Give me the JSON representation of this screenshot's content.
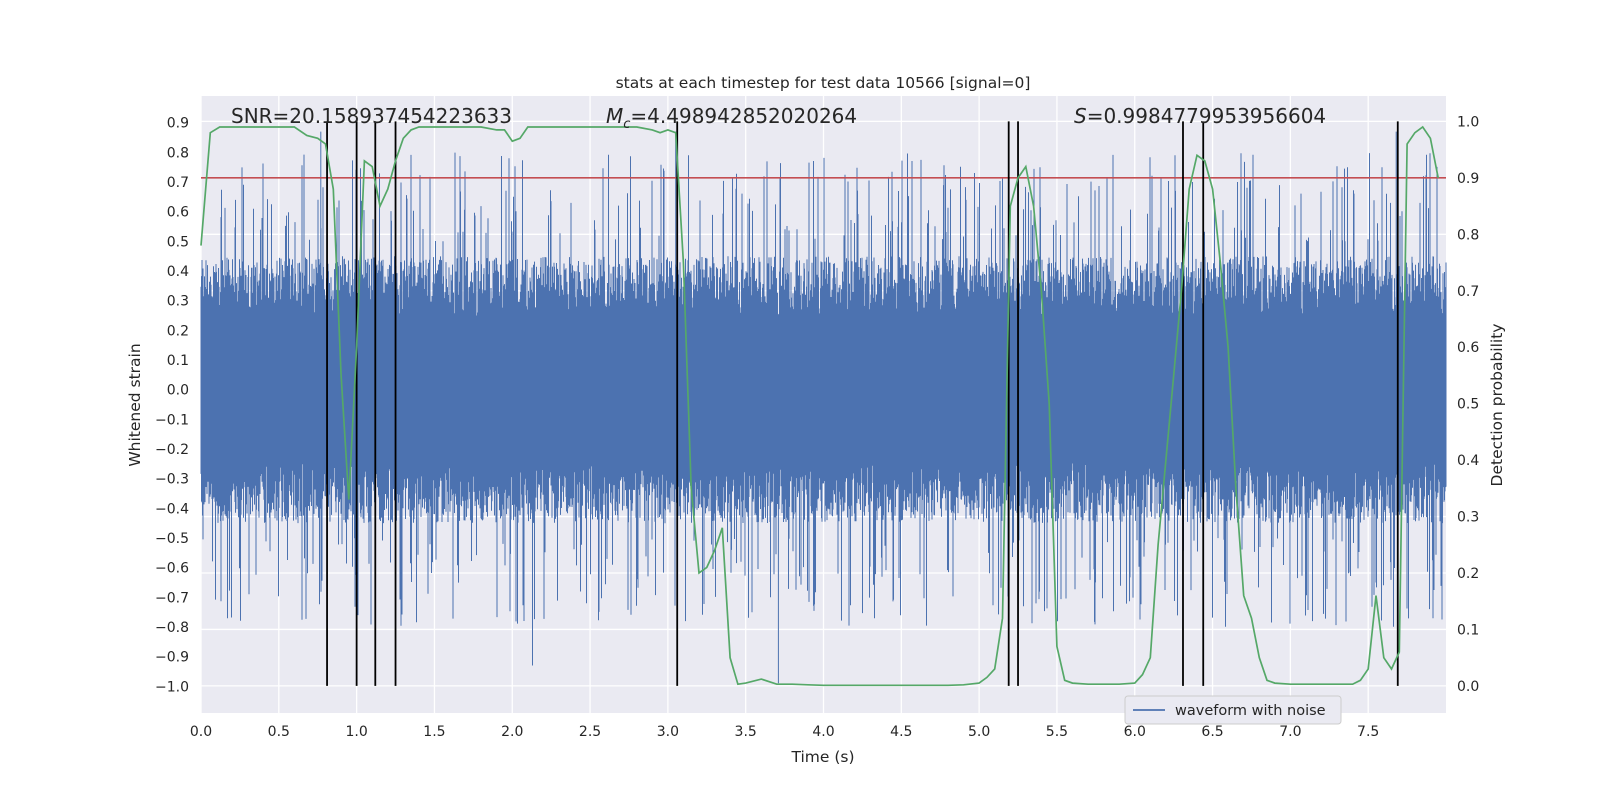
{
  "chart_data": {
    "type": "line",
    "title": "stats at each timestep for test data 10566 [signal=0]",
    "xlabel": "Time (s)",
    "ylabel": "Whitened strain",
    "y2label": "Detection probability",
    "xlim": [
      0,
      8
    ],
    "ylim": [
      -1.09,
      0.99
    ],
    "y2lim": [
      -0.048,
      1.045
    ],
    "xticks": [
      0.0,
      0.5,
      1.0,
      1.5,
      2.0,
      2.5,
      3.0,
      3.5,
      4.0,
      4.5,
      5.0,
      5.5,
      6.0,
      6.5,
      7.0,
      7.5
    ],
    "xtick_labels": [
      "0.0",
      "0.5",
      "1.0",
      "1.5",
      "2.0",
      "2.5",
      "3.0",
      "3.5",
      "4.0",
      "4.5",
      "5.0",
      "5.5",
      "6.0",
      "6.5",
      "7.0",
      "7.5"
    ],
    "yticks": [
      0.9,
      0.8,
      0.7,
      0.6,
      0.5,
      0.4,
      0.3,
      0.2,
      0.1,
      0.0,
      -0.1,
      -0.2,
      -0.3,
      -0.4,
      -0.5,
      -0.6,
      -0.7,
      -0.8,
      -0.9,
      -1.0
    ],
    "ytick_labels": [
      "0.9",
      "0.8",
      "0.7",
      "0.6",
      "0.5",
      "0.4",
      "0.3",
      "0.2",
      "0.1",
      "0.0",
      "−0.1",
      "−0.2",
      "−0.3",
      "−0.4",
      "−0.5",
      "−0.6",
      "−0.7",
      "−0.8",
      "−0.9",
      "−1.0"
    ],
    "y2ticks": [
      1.0,
      0.9,
      0.8,
      0.7,
      0.6,
      0.5,
      0.4,
      0.3,
      0.2,
      0.1,
      0.0
    ],
    "y2tick_labels": [
      "1.0",
      "0.9",
      "0.8",
      "0.7",
      "0.6",
      "0.5",
      "0.4",
      "0.3",
      "0.2",
      "0.1",
      "0.0"
    ],
    "grid": true,
    "legend": {
      "entries": [
        "waveform with noise"
      ],
      "location": "lower-right"
    },
    "series": [
      {
        "name": "waveform with noise",
        "axis": "left",
        "style": "dense-noise",
        "color": "#4c72b0",
        "sample_rate_hz": 2048,
        "typical_amplitude": [
          -0.45,
          0.45
        ],
        "visible_extremes": [
          {
            "t": 3.71,
            "value": -0.99
          },
          {
            "t": 2.13,
            "value": -0.93
          },
          {
            "t": 0.77,
            "value": 0.87
          },
          {
            "t": 3.05,
            "value": 0.87
          },
          {
            "t": 7.68,
            "value": 0.87
          }
        ]
      },
      {
        "name": "detection probability",
        "axis": "right",
        "color": "#55a868",
        "x": [
          0.0,
          0.06,
          0.12,
          0.2,
          0.3,
          0.45,
          0.6,
          0.68,
          0.75,
          0.8,
          0.85,
          0.9,
          0.95,
          1.0,
          1.05,
          1.1,
          1.15,
          1.2,
          1.25,
          1.3,
          1.35,
          1.4,
          1.5,
          1.6,
          1.7,
          1.8,
          1.9,
          1.95,
          2.0,
          2.05,
          2.1,
          2.15,
          2.2,
          2.3,
          2.4,
          2.5,
          2.6,
          2.7,
          2.8,
          2.9,
          2.95,
          3.0,
          3.05,
          3.1,
          3.15,
          3.2,
          3.25,
          3.3,
          3.35,
          3.4,
          3.45,
          3.5,
          3.6,
          3.7,
          3.8,
          3.9,
          4.0,
          4.2,
          4.4,
          4.6,
          4.7,
          4.8,
          4.9,
          5.0,
          5.05,
          5.1,
          5.15,
          5.2,
          5.25,
          5.3,
          5.35,
          5.4,
          5.45,
          5.5,
          5.55,
          5.6,
          5.7,
          5.8,
          5.9,
          6.0,
          6.05,
          6.1,
          6.15,
          6.2,
          6.25,
          6.3,
          6.35,
          6.4,
          6.45,
          6.5,
          6.55,
          6.6,
          6.65,
          6.7,
          6.75,
          6.8,
          6.85,
          6.9,
          7.0,
          7.1,
          7.2,
          7.3,
          7.4,
          7.45,
          7.5,
          7.55,
          7.6,
          7.65,
          7.7,
          7.75,
          7.8,
          7.85,
          7.9,
          7.95
        ],
        "values": [
          0.78,
          0.98,
          0.99,
          0.99,
          0.99,
          0.99,
          0.99,
          0.975,
          0.97,
          0.96,
          0.88,
          0.55,
          0.33,
          0.6,
          0.93,
          0.92,
          0.85,
          0.88,
          0.93,
          0.97,
          0.985,
          0.99,
          0.99,
          0.99,
          0.99,
          0.99,
          0.985,
          0.985,
          0.965,
          0.97,
          0.99,
          0.99,
          0.99,
          0.99,
          0.99,
          0.99,
          0.99,
          0.99,
          0.99,
          0.985,
          0.98,
          0.985,
          0.98,
          0.75,
          0.35,
          0.2,
          0.21,
          0.24,
          0.28,
          0.05,
          0.003,
          0.005,
          0.012,
          0.003,
          0.003,
          0.002,
          0.001,
          0.001,
          0.001,
          0.001,
          0.001,
          0.001,
          0.002,
          0.005,
          0.015,
          0.03,
          0.12,
          0.85,
          0.9,
          0.92,
          0.85,
          0.7,
          0.5,
          0.07,
          0.01,
          0.005,
          0.003,
          0.003,
          0.003,
          0.005,
          0.02,
          0.05,
          0.25,
          0.4,
          0.55,
          0.7,
          0.88,
          0.94,
          0.93,
          0.88,
          0.75,
          0.6,
          0.35,
          0.16,
          0.12,
          0.05,
          0.01,
          0.005,
          0.003,
          0.003,
          0.003,
          0.003,
          0.003,
          0.01,
          0.03,
          0.16,
          0.05,
          0.03,
          0.06,
          0.96,
          0.98,
          0.99,
          0.97,
          0.9
        ]
      }
    ],
    "threshold_line": {
      "axis": "right",
      "value": 0.9,
      "color": "#c44e52"
    },
    "vertical_markers": {
      "color": "#000000",
      "y_range_right": [
        0.0,
        1.0
      ],
      "x": [
        0.81,
        1.0,
        1.12,
        1.25,
        3.06,
        5.19,
        5.25,
        6.31,
        6.44,
        7.69
      ]
    },
    "annotations": [
      {
        "text": "SNR=20.158937454223633",
        "position": "top-left"
      },
      {
        "text": "Mc=4.498942852020264",
        "display_prefix": "M",
        "display_subscript": "c",
        "display_suffix": "=4.498942852020264",
        "position": "top-center"
      },
      {
        "text": "S=0.9984779953956604",
        "display_prefix": "S",
        "display_suffix": "=0.9984779953956604",
        "position": "top-right"
      }
    ]
  }
}
